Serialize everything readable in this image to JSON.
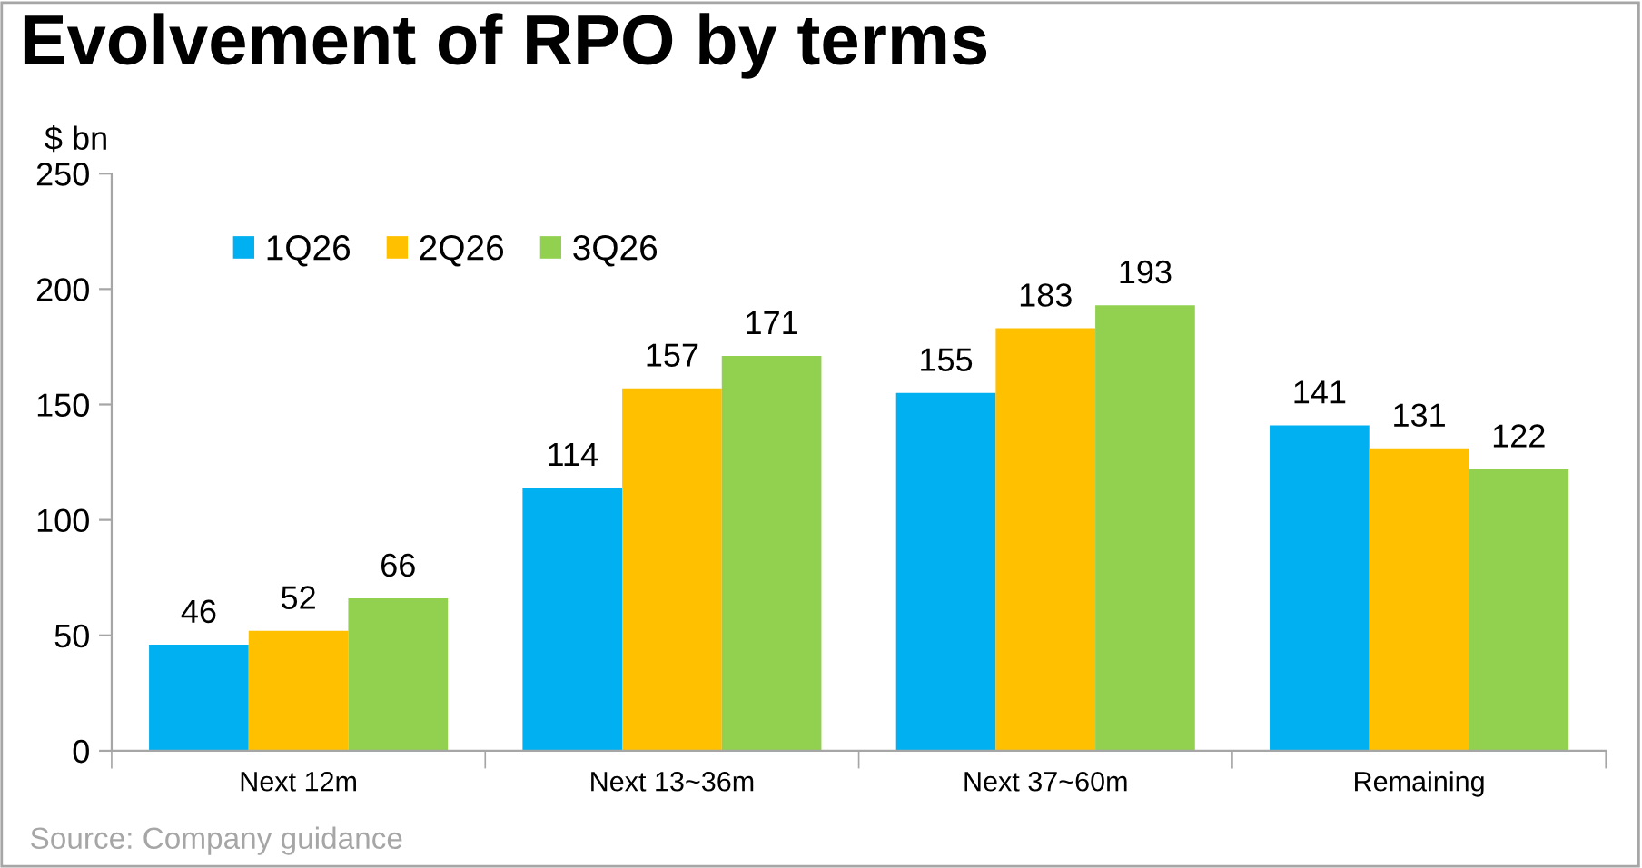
{
  "chart_data": {
    "type": "bar",
    "title": "Evolvement of RPO by terms",
    "ylabel": "$ bn",
    "categories": [
      "Next 12m",
      "Next 13~36m",
      "Next 37~60m",
      "Remaining"
    ],
    "series": [
      {
        "name": "1Q26",
        "color": "#00b0f0",
        "values": [
          46,
          114,
          155,
          141
        ]
      },
      {
        "name": "2Q26",
        "color": "#ffc000",
        "values": [
          52,
          157,
          183,
          131
        ]
      },
      {
        "name": "3Q26",
        "color": "#92d050",
        "values": [
          66,
          171,
          193,
          122
        ]
      }
    ],
    "ylim": [
      0,
      250
    ],
    "yticks": [
      0,
      50,
      100,
      150,
      200,
      250
    ],
    "grid": false,
    "legend": "top left",
    "data_labels": true,
    "annotations": [
      "Source: Company guidance"
    ]
  }
}
